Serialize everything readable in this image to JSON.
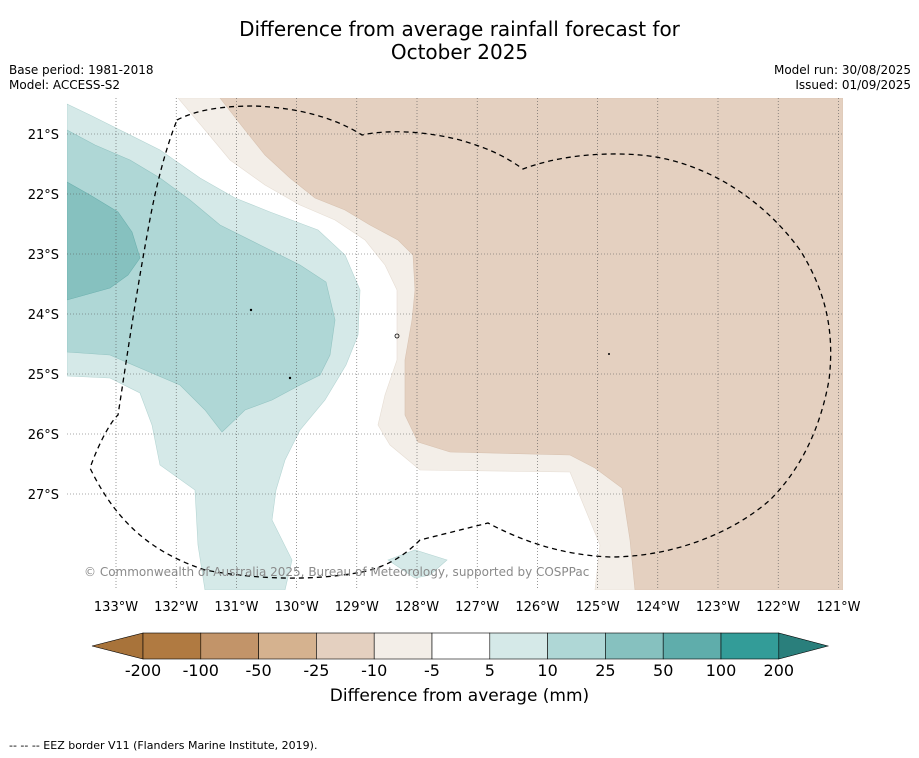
{
  "title_line1": "Difference from average rainfall forecast for",
  "title_line2": "October 2025",
  "meta_left": {
    "base_period": "Base period: 1981-2018",
    "model": "Model: ACCESS-S2"
  },
  "meta_right": {
    "model_run": "Model run: 30/08/2025",
    "issued": "Issued: 01/09/2025"
  },
  "copyright": "© Commonwealth of Australia 2025, Bureau of Meteorology, supported by COSPPac",
  "lon_labels": [
    "133°W",
    "132°W",
    "131°W",
    "130°W",
    "129°W",
    "128°W",
    "127°W",
    "126°W",
    "125°W",
    "124°W",
    "123°W",
    "122°W",
    "121°W"
  ],
  "lat_labels": [
    "21°S",
    "22°S",
    "23°S",
    "24°S",
    "25°S",
    "26°S",
    "27°S"
  ],
  "colorbar": {
    "ticks": [
      "-200",
      "-100",
      "-50",
      "-25",
      "-10",
      "-5",
      "5",
      "10",
      "25",
      "50",
      "100",
      "200"
    ],
    "colors": [
      "#a8733a",
      "#b07a41",
      "#c29469",
      "#d5b28f",
      "#e4d0c0",
      "#f3eee8",
      "#ffffff",
      "#d5e9e8",
      "#afd7d6",
      "#86c1bf",
      "#5fadab",
      "#339c98",
      "#2a7f7c"
    ],
    "label": "Difference from average (mm)"
  },
  "footnote": "--  --  -- EEZ border V11 (Flanders Marine Institute, 2019)."
}
